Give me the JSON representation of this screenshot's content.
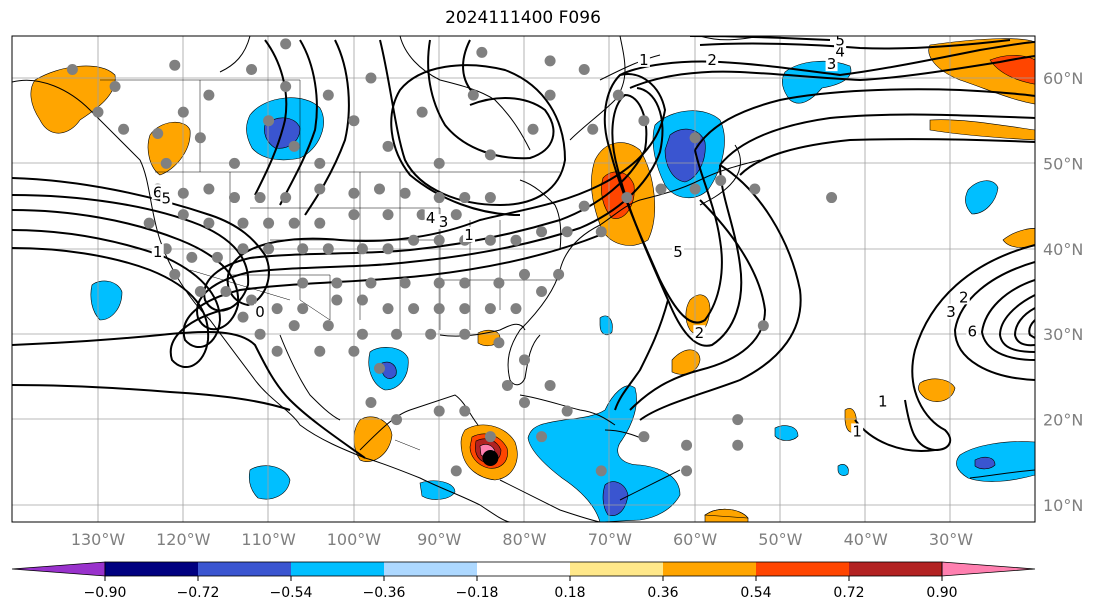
{
  "title": "2024111400 F096",
  "map": {
    "lat_labels": [
      "60°N",
      "50°N",
      "40°N",
      "30°N",
      "20°N",
      "10°N"
    ],
    "lat_values": [
      60,
      50,
      40,
      30,
      20,
      10
    ],
    "lon_labels": [
      "130°W",
      "120°W",
      "110°W",
      "100°W",
      "90°W",
      "80°W",
      "70°W",
      "60°W",
      "50°W",
      "40°W",
      "30°W"
    ],
    "lon_values": [
      -130,
      -120,
      -110,
      -100,
      -90,
      -80,
      -70,
      -60,
      -50,
      -40,
      -30
    ],
    "contour_labels": [
      {
        "text": "1",
        "lon": -66,
        "lat": 62
      },
      {
        "text": "2",
        "lon": -58,
        "lat": 62
      },
      {
        "text": "3",
        "lon": -44,
        "lat": 61.5
      },
      {
        "text": "4",
        "lon": -43,
        "lat": 63
      },
      {
        "text": "5",
        "lon": -43,
        "lat": 64.3
      },
      {
        "text": "6",
        "lon": -123,
        "lat": 46.5
      },
      {
        "text": "5",
        "lon": -122,
        "lat": 45.8
      },
      {
        "text": "1",
        "lon": -123,
        "lat": 39.5
      },
      {
        "text": "0",
        "lon": -111,
        "lat": 32.5
      },
      {
        "text": "4",
        "lon": -91,
        "lat": 43.5
      },
      {
        "text": "3",
        "lon": -89.5,
        "lat": 43
      },
      {
        "text": "1",
        "lon": -86.5,
        "lat": 41.5
      },
      {
        "text": "5",
        "lon": -62,
        "lat": 39.5
      },
      {
        "text": "2",
        "lon": -59.5,
        "lat": 30
      },
      {
        "text": "1",
        "lon": -38,
        "lat": 22
      },
      {
        "text": "1",
        "lon": -41,
        "lat": 18.5
      },
      {
        "text": "2",
        "lon": -28.5,
        "lat": 34.2
      },
      {
        "text": "3",
        "lon": -30,
        "lat": 32.5
      },
      {
        "text": "6",
        "lon": -27.5,
        "lat": 30.2
      }
    ],
    "station_color": "#808080",
    "storm_marker": {
      "lon": -84,
      "lat": 15.5
    }
  },
  "colorbar": {
    "ticks": [
      "−0.90",
      "−0.72",
      "−0.54",
      "−0.36",
      "−0.18",
      "0.18",
      "0.36",
      "0.54",
      "0.72",
      "0.90"
    ],
    "colors": [
      "#9932cc",
      "#000080",
      "#3a55d0",
      "#00bfff",
      "#add8ff",
      "#ffffff",
      "#ffe88a",
      "#ffa500",
      "#ff4500",
      "#b22222",
      "#ff80b0"
    ]
  }
}
